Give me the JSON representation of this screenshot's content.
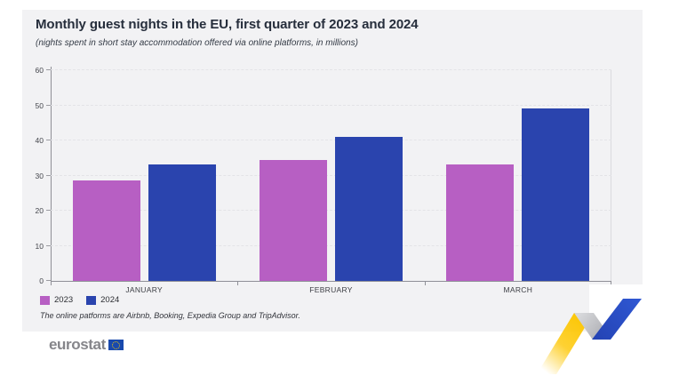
{
  "chart_data": {
    "type": "bar",
    "title": "Monthly guest nights in the EU, first quarter of 2023 and 2024",
    "subtitle": "(nights spent in short stay accommodation offered via online platforms, in millions)",
    "categories": [
      "JANUARY",
      "FEBRUARY",
      "MARCH"
    ],
    "series": [
      {
        "name": "2023",
        "color": "#b75fc3",
        "values": [
          28.6,
          34.5,
          33.2
        ]
      },
      {
        "name": "2024",
        "color": "#2a44ae",
        "values": [
          33.1,
          41.0,
          49.2
        ]
      }
    ],
    "xlabel": "",
    "ylabel": "",
    "ylim": [
      0,
      60
    ],
    "yticks": [
      0,
      10,
      20,
      30,
      40,
      50,
      60
    ],
    "grid": true,
    "legend_position": "bottom-left"
  },
  "footnote": "The online patforms are Airbnb, Booking, Expedia Group and TripAdvisor.",
  "logo": {
    "text": "eurostat"
  },
  "colors": {
    "card_background": "#f2f2f4",
    "page_background": "#ffffff",
    "series_2023_purple": "#b75fc3",
    "series_2024_blue": "#2a44ae",
    "eu_flag_blue": "#1849ad",
    "star_yellow": "#ffcc00",
    "ribbon_yellow": "#fdc600",
    "ribbon_blue": "#2b51c7",
    "ribbon_grey": "#a5a6ab"
  }
}
